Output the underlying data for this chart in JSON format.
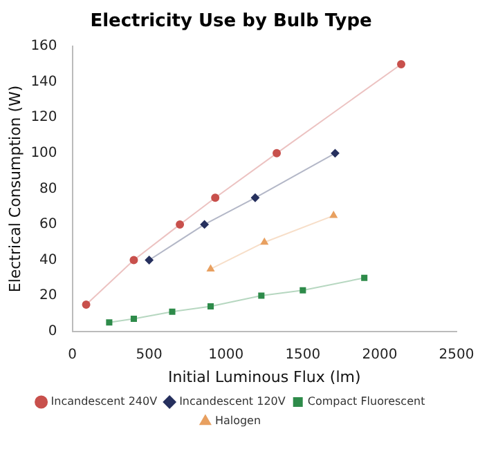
{
  "chart_data": {
    "type": "line",
    "title": "Electricity Use by Bulb Type",
    "xlabel": "Initial Luminous Flux (lm)",
    "ylabel": "Electrical Consumption (W)",
    "xlim": [
      0,
      2500
    ],
    "xticks": [
      0,
      500,
      1000,
      1500,
      2000,
      2500
    ],
    "ylim": [
      0,
      160
    ],
    "yticks": [
      0,
      20,
      40,
      60,
      80,
      100,
      120,
      140,
      160
    ],
    "grid": false,
    "legend": "bottom",
    "series": [
      {
        "name": "Incandescent 240V",
        "color": "#c8504c",
        "marker": "circle",
        "x": [
          90,
          400,
          700,
          930,
          1330,
          2140
        ],
        "values": [
          15,
          40,
          60,
          75,
          100,
          150
        ]
      },
      {
        "name": "Incandescent 120V",
        "color": "#26305e",
        "marker": "diamond",
        "x": [
          500,
          860,
          1190,
          1710
        ],
        "values": [
          40,
          60,
          75,
          100
        ]
      },
      {
        "name": "Compact Fluorescent",
        "color": "#2e8b4a",
        "marker": "square",
        "x": [
          240,
          400,
          650,
          900,
          1230,
          1500,
          1900
        ],
        "values": [
          5,
          7,
          11,
          14,
          20,
          23,
          30
        ]
      },
      {
        "name": "Halogen",
        "color": "#e8a060",
        "marker": "triangle",
        "x": [
          900,
          1250,
          1700
        ],
        "values": [
          35,
          50,
          65
        ]
      }
    ]
  }
}
